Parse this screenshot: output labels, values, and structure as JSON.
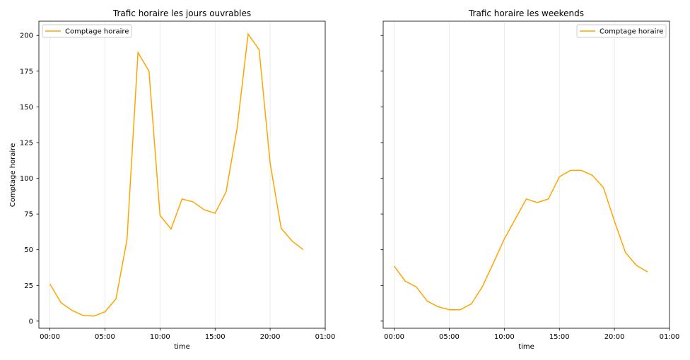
{
  "chart_data": [
    {
      "type": "line",
      "title": "Trafic horaire les jours ouvrables",
      "xlabel": "time",
      "ylabel": "Comptage horaire",
      "x": [
        0,
        1,
        2,
        3,
        4,
        5,
        6,
        7,
        8,
        9,
        10,
        11,
        12,
        13,
        14,
        15,
        16,
        17,
        18,
        19,
        20,
        21,
        22,
        23
      ],
      "x_ticks": [
        "00:00",
        "05:00",
        "10:00",
        "15:00",
        "20:00",
        "01:00"
      ],
      "y_ticks": [
        0,
        25,
        50,
        75,
        100,
        125,
        150,
        175,
        200
      ],
      "ylim": [
        -5,
        210
      ],
      "xlim": [
        -1,
        25
      ],
      "grid": "vertical",
      "legend_position": "upper-left",
      "series": [
        {
          "name": "Comptage horaire",
          "color": "#FFA500",
          "values": [
            26,
            13,
            7.5,
            4,
            3.5,
            6.5,
            15.5,
            57,
            188,
            175,
            74,
            64.5,
            85.5,
            83.5,
            78,
            75.5,
            90.5,
            135,
            201,
            190,
            110.5,
            65,
            56,
            50
          ]
        }
      ]
    },
    {
      "type": "line",
      "title": "Trafic horaire les weekends",
      "xlabel": "time",
      "ylabel": "",
      "x": [
        0,
        1,
        2,
        3,
        4,
        5,
        6,
        7,
        8,
        9,
        10,
        11,
        12,
        13,
        14,
        15,
        16,
        17,
        18,
        19,
        20,
        21,
        22,
        23
      ],
      "x_ticks": [
        "00:00",
        "05:00",
        "10:00",
        "15:00",
        "20:00",
        "01:00"
      ],
      "y_ticks": [
        0,
        25,
        50,
        75,
        100,
        125,
        150,
        175,
        200
      ],
      "ylim": [
        -5,
        210
      ],
      "xlim": [
        -1,
        25
      ],
      "grid": "vertical",
      "legend_position": "upper-right",
      "series": [
        {
          "name": "Comptage horaire",
          "color": "#FFA500",
          "values": [
            38.5,
            28,
            24,
            14,
            10,
            8,
            8,
            12,
            24,
            40.5,
            57.5,
            71.5,
            85.5,
            83,
            85.5,
            101,
            105.5,
            105.5,
            102,
            93.5,
            70,
            48,
            39,
            34.5
          ]
        }
      ]
    }
  ]
}
